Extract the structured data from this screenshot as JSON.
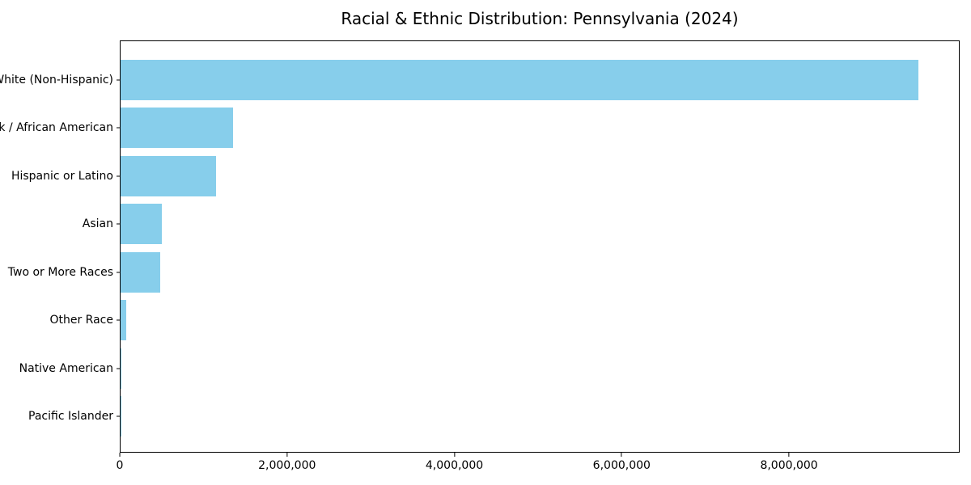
{
  "title": "Racial & Ethnic Distribution: Pennsylvania (2024)",
  "chart_data": {
    "type": "bar",
    "orientation": "horizontal",
    "title": "Racial & Ethnic Distribution: Pennsylvania (2024)",
    "categories": [
      "White (Non-Hispanic)",
      "Black / African American",
      "Hispanic or Latino",
      "Asian",
      "Two or More Races",
      "Other Race",
      "Native American",
      "Pacific Islander"
    ],
    "values": [
      9560000,
      1345000,
      1140000,
      495000,
      474000,
      71000,
      10000,
      2000
    ],
    "bar_color": "#87CEEB",
    "xlabel": "",
    "ylabel": "",
    "xlim": [
      0,
      10040000
    ],
    "x_ticks": [
      0,
      2000000,
      4000000,
      6000000,
      8000000
    ],
    "x_tick_labels": [
      "0",
      "2,000,000",
      "4,000,000",
      "6,000,000",
      "8,000,000"
    ],
    "grid": false,
    "legend": "none",
    "background_color": "#ffffff",
    "spine_color": "#000000"
  }
}
